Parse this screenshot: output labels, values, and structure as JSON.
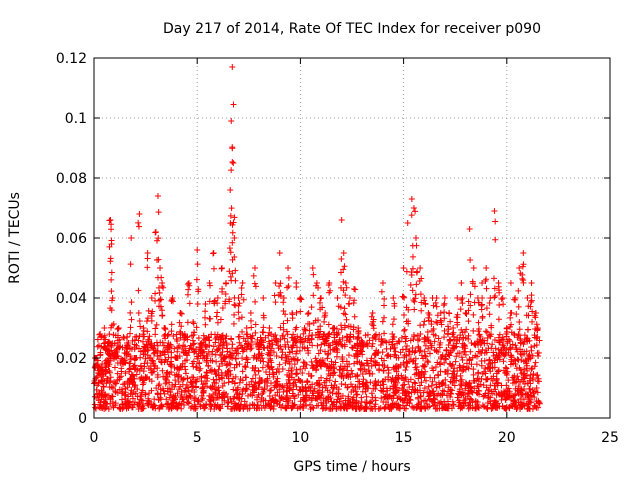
{
  "chart_data": {
    "type": "scatter",
    "title": "Day 217 of 2014, Rate Of TEC Index for receiver p090",
    "xlabel": "GPS time / hours",
    "ylabel": "ROTI / TECUs",
    "xlim": [
      0,
      25
    ],
    "ylim": [
      0,
      0.12
    ],
    "xticks": [
      0,
      5,
      10,
      15,
      20,
      25
    ],
    "yticks": [
      0,
      0.02,
      0.04,
      0.06,
      0.08,
      0.1,
      0.12
    ],
    "xtick_labels": [
      "0",
      "5",
      "10",
      "15",
      "20",
      "25"
    ],
    "ytick_labels": [
      "0",
      "0.02",
      "0.04",
      "0.06",
      "0.08",
      "0.1",
      "0.12"
    ],
    "grid": true,
    "legend": "none",
    "marker": "+",
    "color": "#ff0000",
    "series": [
      {
        "x": [
          0.1,
          0.2,
          0.3,
          0.4,
          0.5,
          0.6,
          0.7,
          0.8,
          0.85,
          0.9,
          1.0,
          1.2,
          1.4,
          1.6,
          1.8,
          2.0,
          2.2,
          2.4,
          2.6,
          2.8,
          3.0,
          3.1,
          3.2,
          3.3,
          3.4,
          3.6,
          3.8,
          4.0,
          4.2,
          4.4,
          4.6,
          4.8,
          5.0,
          5.2,
          5.4,
          5.6,
          5.8,
          6.0,
          6.2,
          6.4,
          6.6,
          6.65,
          6.7,
          6.75,
          6.8,
          7.0,
          7.2,
          7.4,
          7.6,
          7.8,
          8.0,
          8.2,
          8.5,
          8.8,
          9.0,
          9.2,
          9.4,
          9.6,
          9.8,
          10.0,
          10.2,
          10.4,
          10.6,
          10.8,
          11.0,
          11.2,
          11.4,
          11.6,
          11.8,
          12.0,
          12.1,
          12.2,
          12.4,
          12.6,
          12.8,
          13.0,
          13.5,
          14.0,
          14.5,
          15.0,
          15.2,
          15.4,
          15.5,
          15.6,
          15.8,
          16.0,
          16.2,
          16.4,
          16.6,
          16.8,
          17.0,
          17.2,
          17.4,
          17.6,
          17.8,
          18.0,
          18.2,
          18.4,
          18.6,
          18.8,
          19.0,
          19.2,
          19.4,
          19.6,
          19.8,
          20.0,
          20.2,
          20.4,
          20.6,
          20.8,
          21.0,
          21.2,
          21.4,
          21.5
        ],
        "y": [
          0.02,
          0.015,
          0.028,
          0.012,
          0.03,
          0.018,
          0.025,
          0.066,
          0.058,
          0.04,
          0.022,
          0.03,
          0.018,
          0.025,
          0.06,
          0.02,
          0.068,
          0.03,
          0.055,
          0.04,
          0.062,
          0.074,
          0.05,
          0.045,
          0.03,
          0.025,
          0.04,
          0.02,
          0.035,
          0.028,
          0.045,
          0.032,
          0.056,
          0.025,
          0.038,
          0.045,
          0.055,
          0.04,
          0.05,
          0.045,
          0.076,
          0.099,
          0.117,
          0.085,
          0.06,
          0.04,
          0.045,
          0.03,
          0.035,
          0.05,
          0.025,
          0.04,
          0.03,
          0.045,
          0.055,
          0.04,
          0.05,
          0.035,
          0.045,
          0.04,
          0.03,
          0.035,
          0.05,
          0.045,
          0.04,
          0.035,
          0.045,
          0.03,
          0.04,
          0.066,
          0.055,
          0.045,
          0.04,
          0.043,
          0.03,
          0.025,
          0.035,
          0.045,
          0.04,
          0.05,
          0.065,
          0.073,
          0.07,
          0.06,
          0.05,
          0.04,
          0.035,
          0.04,
          0.04,
          0.035,
          0.04,
          0.035,
          0.03,
          0.04,
          0.045,
          0.035,
          0.063,
          0.05,
          0.04,
          0.045,
          0.05,
          0.04,
          0.069,
          0.045,
          0.04,
          0.03,
          0.045,
          0.04,
          0.05,
          0.055,
          0.04,
          0.045,
          0.035,
          0.03
        ],
        "band": {
          "x_start": 0.0,
          "x_end": 21.6,
          "y_min": 0.003,
          "y_max": 0.028
        }
      }
    ]
  }
}
